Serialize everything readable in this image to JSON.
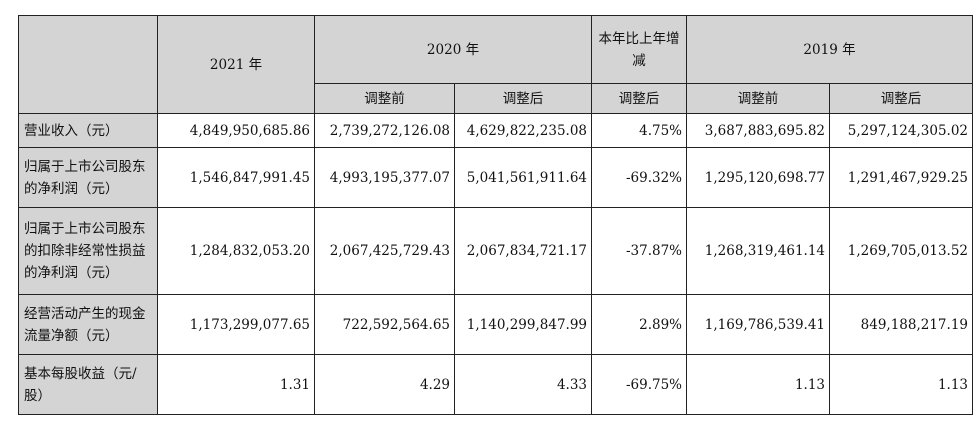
{
  "table": {
    "headers": {
      "y2021": "2021 年",
      "y2020": "2020 年",
      "yoy": "本年比上年增减",
      "y2019": "2019 年",
      "before_adj": "调整前",
      "after_adj": "调整后"
    },
    "rows": [
      {
        "label": "营业收入（元）",
        "v2021": "4,849,950,685.86",
        "v2020_before": "2,739,272,126.08",
        "v2020_after": "4,629,822,235.08",
        "yoy": "4.75%",
        "v2019_before": "3,687,883,695.82",
        "v2019_after": "5,297,124,305.02"
      },
      {
        "label": "归属于上市公司股东的净利润（元）",
        "v2021": "1,546,847,991.45",
        "v2020_before": "4,993,195,377.07",
        "v2020_after": "5,041,561,911.64",
        "yoy": "-69.32%",
        "v2019_before": "1,295,120,698.77",
        "v2019_after": "1,291,467,929.25"
      },
      {
        "label": "归属于上市公司股东的扣除非经常性损益的净利润（元）",
        "v2021": "1,284,832,053.20",
        "v2020_before": "2,067,425,729.43",
        "v2020_after": "2,067,834,721.17",
        "yoy": "-37.87%",
        "v2019_before": "1,268,319,461.14",
        "v2019_after": "1,269,705,013.52"
      },
      {
        "label": "经营活动产生的现金流量净额（元）",
        "v2021": "1,173,299,077.65",
        "v2020_before": "722,592,564.65",
        "v2020_after": "1,140,299,847.99",
        "yoy": "2.89%",
        "v2019_before": "1,169,786,539.41",
        "v2019_after": "849,188,217.19"
      },
      {
        "label": "基本每股收益（元/股）",
        "v2021": "1.31",
        "v2020_before": "4.29",
        "v2020_after": "4.33",
        "yoy": "-69.75%",
        "v2019_before": "1.13",
        "v2019_after": "1.13"
      }
    ]
  }
}
